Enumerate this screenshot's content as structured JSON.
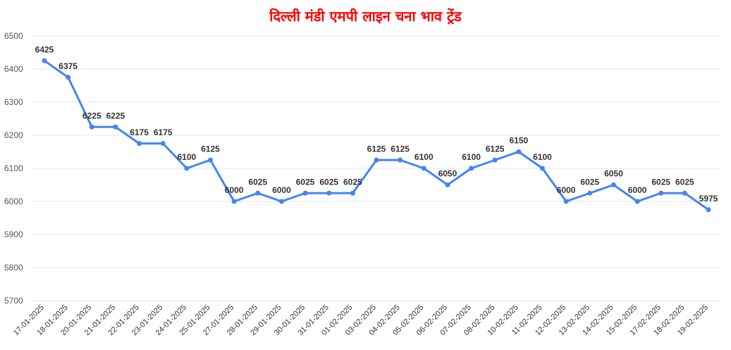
{
  "chart_data": {
    "type": "line",
    "title": "दिल्ली मंडी एमपी लाइन चना भाव ट्रेंड",
    "xlabel": "",
    "ylabel": "",
    "ylim": [
      5700,
      6500
    ],
    "yticks": [
      5700,
      5800,
      5900,
      6000,
      6100,
      6200,
      6300,
      6400,
      6500
    ],
    "grid": true,
    "legend": "none",
    "categories": [
      "17-01-2025",
      "18-01-2025",
      "20-01-2025",
      "21-01-2025",
      "22-01-2025",
      "23-01-2025",
      "24-01-2025",
      "25-01-2025",
      "27-01-2025",
      "28-01-2025",
      "29-01-2025",
      "30-01-2025",
      "31-01-2025",
      "01-02-2025",
      "03-02-2025",
      "04-02-2025",
      "05-02-2025",
      "06-02-2025",
      "07-02-2025",
      "08-02-2025",
      "10-02-2025",
      "11-02-2025",
      "12-02-2025",
      "13-02-2025",
      "14-02-2025",
      "15-02-2025",
      "17-02-2025",
      "18-02-2025",
      "19-02-2025"
    ],
    "series": [
      {
        "values": [
          6425,
          6375,
          6225,
          6225,
          6175,
          6175,
          6100,
          6125,
          6000,
          6025,
          6000,
          6025,
          6025,
          6025,
          6125,
          6125,
          6100,
          6050,
          6100,
          6125,
          6150,
          6100,
          6000,
          6025,
          6050,
          6000,
          6025,
          6025,
          5975
        ],
        "color": "#4285f4"
      }
    ]
  }
}
